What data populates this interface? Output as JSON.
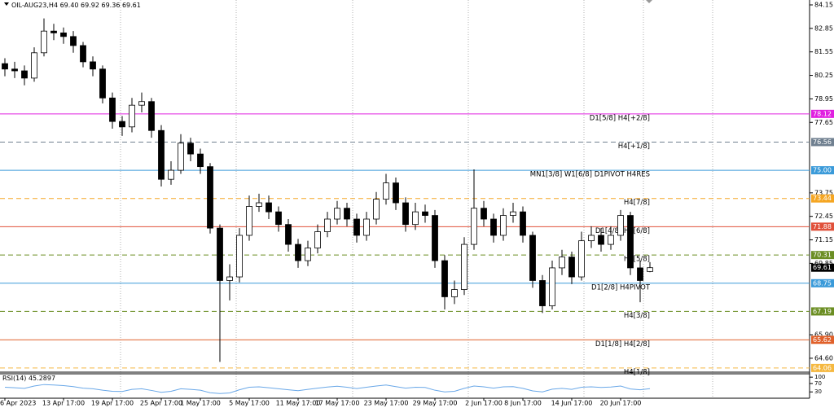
{
  "chart_data": {
    "type": "candlestick",
    "title": "OIL-AUG23,H4",
    "title_ohlc_labels": [
      "69.40",
      "69.92",
      "69.36",
      "69.61"
    ],
    "categories": [
      "6 Apr 2023",
      null,
      null,
      null,
      null,
      null,
      "13 Apr 17:00",
      null,
      null,
      null,
      null,
      "19 Apr 17:00",
      null,
      null,
      null,
      null,
      "25 Apr 17:00",
      null,
      null,
      null,
      "1 May 17:00",
      null,
      null,
      null,
      null,
      "5 May 17:00",
      null,
      null,
      null,
      null,
      "11 May 17:00",
      null,
      null,
      null,
      "17 May 17:00",
      null,
      null,
      null,
      null,
      "23 May 17:00",
      null,
      null,
      null,
      null,
      "29 May 17:00",
      null,
      null,
      null,
      null,
      "2 Jun 17:00",
      null,
      null,
      null,
      "8 Jun 17:00",
      null,
      null,
      null,
      null,
      "14 Jun 17:00",
      null,
      null,
      null,
      null,
      "20 Jun 17:00",
      null,
      null,
      null
    ],
    "open": [
      80.9,
      80.6,
      80.5,
      80.1,
      81.5,
      82.7,
      82.6,
      82.4,
      81.9,
      81.0,
      80.6,
      79.0,
      77.7,
      77.4,
      78.6,
      78.8,
      77.2,
      74.5,
      75.0,
      76.5,
      75.9,
      75.2,
      71.8,
      68.9,
      69.1,
      71.4,
      73.0,
      73.2,
      72.7,
      72.0,
      70.9,
      70.0,
      70.7,
      71.6,
      72.3,
      72.9,
      72.3,
      71.4,
      72.3,
      73.4,
      74.3,
      73.2,
      72.0,
      72.7,
      72.5,
      70.0,
      68.0,
      68.4,
      70.9,
      72.9,
      72.3,
      71.4,
      72.5,
      72.7,
      71.4,
      68.9,
      67.5,
      69.6,
      70.2,
      69.1,
      71.1,
      71.4,
      70.9,
      71.4,
      72.5,
      69.6,
      69.4
    ],
    "high": [
      81.2,
      81.0,
      80.8,
      81.8,
      83.4,
      83.1,
      82.9,
      82.7,
      82.1,
      81.3,
      80.8,
      79.3,
      78.0,
      79.0,
      79.3,
      79.0,
      77.5,
      75.5,
      77.0,
      76.8,
      76.2,
      75.4,
      72.0,
      69.8,
      71.8,
      73.6,
      73.7,
      73.6,
      73.0,
      72.3,
      71.2,
      71.1,
      72.0,
      72.7,
      73.3,
      73.2,
      72.6,
      72.7,
      73.8,
      74.8,
      74.6,
      73.5,
      73.2,
      73.1,
      72.8,
      70.3,
      68.9,
      71.3,
      75.05,
      73.3,
      72.6,
      72.9,
      73.2,
      73.0,
      71.6,
      69.2,
      70.0,
      70.6,
      70.5,
      71.6,
      71.9,
      71.8,
      71.9,
      72.8,
      72.7,
      70.0,
      69.92
    ],
    "low": [
      80.2,
      80.1,
      79.7,
      79.9,
      81.3,
      82.2,
      82.0,
      81.5,
      80.7,
      80.2,
      78.7,
      77.3,
      76.9,
      77.1,
      78.2,
      76.8,
      74.1,
      74.2,
      74.8,
      75.5,
      74.8,
      71.5,
      64.4,
      67.8,
      68.8,
      71.1,
      72.7,
      72.3,
      71.6,
      70.5,
      69.6,
      69.7,
      70.4,
      71.3,
      72.0,
      71.9,
      71.0,
      71.1,
      72.0,
      73.1,
      72.8,
      71.6,
      71.7,
      72.1,
      69.6,
      67.3,
      67.6,
      68.1,
      70.6,
      71.9,
      71.0,
      71.1,
      72.1,
      71.0,
      68.5,
      67.1,
      67.3,
      69.2,
      68.7,
      68.9,
      70.7,
      70.5,
      70.6,
      71.1,
      69.2,
      67.7,
      69.36
    ],
    "close": [
      80.6,
      80.5,
      80.1,
      81.5,
      82.7,
      82.6,
      82.4,
      81.9,
      81.0,
      80.6,
      79.0,
      77.7,
      77.4,
      78.6,
      78.8,
      77.2,
      74.5,
      75.0,
      76.5,
      75.9,
      75.2,
      71.8,
      68.9,
      69.1,
      71.4,
      73.0,
      73.2,
      72.7,
      72.0,
      70.9,
      70.0,
      70.7,
      71.6,
      72.3,
      72.9,
      72.3,
      71.4,
      72.3,
      73.4,
      74.3,
      73.2,
      72.0,
      72.7,
      72.5,
      70.0,
      68.0,
      68.4,
      70.9,
      72.9,
      72.3,
      71.4,
      72.5,
      72.7,
      71.4,
      68.9,
      67.5,
      69.6,
      70.2,
      69.1,
      71.1,
      71.4,
      70.9,
      71.4,
      72.5,
      69.6,
      68.9,
      69.61
    ],
    "up_color": "#ffffff",
    "down_color": "#000000",
    "ylim": [
      63.83,
      84.42
    ],
    "yticks": [
      84.15,
      82.85,
      81.55,
      80.25,
      78.95,
      77.65,
      73.75,
      72.45,
      71.15,
      69.85,
      {
        "value": 65.9,
        "label": "65.90"
      },
      {
        "value": 64.6,
        "label": "64.60"
      }
    ],
    "levels": [
      {
        "value": 78.12,
        "label": "78.12",
        "text": "D1[5/8] H4[+2/8]",
        "color": "#e020e0",
        "dashed": false
      },
      {
        "value": 76.56,
        "label": "76.56",
        "text": "H4[+1/8]",
        "color": "#708090",
        "dashed": true
      },
      {
        "value": 75,
        "label": "75.00",
        "text": "MN1[3/8] W1[6/8] D1PIVOT H4RES",
        "color": "#3a9ad9",
        "dashed": false
      },
      {
        "value": 73.44,
        "label": "73.44",
        "text": "H4[7/8]",
        "color": "#f5a623",
        "dashed": true
      },
      {
        "value": 71.88,
        "label": "71.88",
        "text": "D1[4/8] H4[6/8]",
        "color": "#e0503a",
        "dashed": false
      },
      {
        "value": 70.31,
        "label": "70.31",
        "text": "H4[5/8]",
        "color": "#6b8e23",
        "dashed": true
      },
      {
        "value": 68.75,
        "label": "68.75",
        "text": "D1[2/8] H4PIVOT",
        "color": "#3a9ad9",
        "dashed": false
      },
      {
        "value": 67.19,
        "label": "67.19",
        "text": "H4[3/8]",
        "color": "#6b8e23",
        "dashed": true
      },
      {
        "value": 65.62,
        "label": "65.62",
        "text": "D1[1/8] H4[2/8]",
        "color": "#e0602a",
        "dashed": false
      },
      {
        "value": 64.06,
        "label": "64.06",
        "text": "H4[1/8]",
        "color": "#f5b840",
        "dashed": true
      }
    ],
    "rsi": {
      "name": "RSI(14)",
      "color": "#6aa8e8",
      "ylim": [
        0,
        116
      ],
      "yticks": [
        100,
        70,
        30
      ],
      "values": [
        52,
        50,
        47,
        58,
        65,
        63,
        60,
        55,
        48,
        45,
        38,
        33,
        32,
        42,
        45,
        37,
        28,
        33,
        45,
        42,
        38,
        26,
        22,
        25,
        40,
        52,
        54,
        50,
        45,
        40,
        36,
        42,
        48,
        53,
        57,
        52,
        46,
        52,
        58,
        63,
        55,
        48,
        52,
        51,
        38,
        30,
        33,
        47,
        58,
        54,
        48,
        54,
        55,
        47,
        35,
        30,
        43,
        47,
        42,
        52,
        54,
        51,
        53,
        58,
        44,
        40,
        45.2897
      ]
    }
  }
}
